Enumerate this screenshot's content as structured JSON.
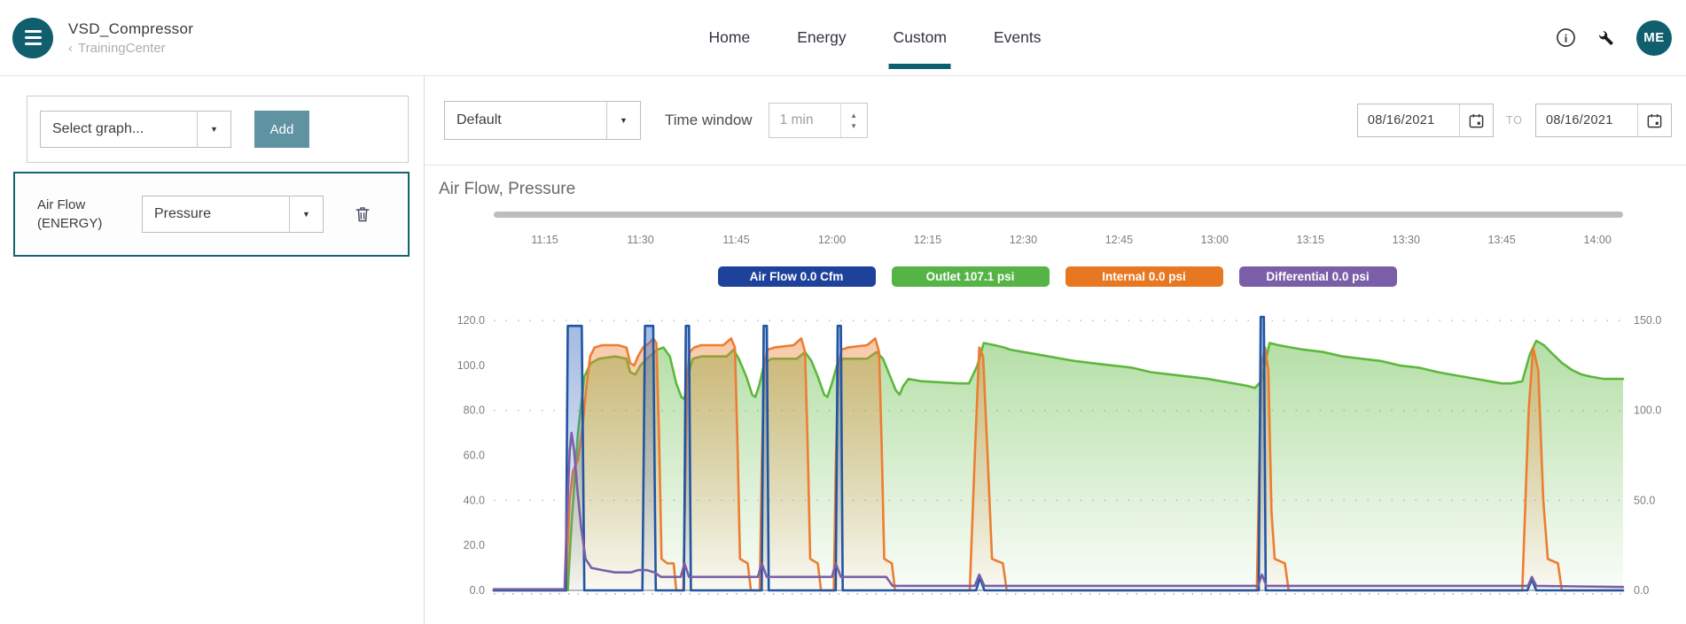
{
  "header": {
    "app_title": "VSD_Compressor",
    "breadcrumb": "TrainingCenter",
    "nav": [
      {
        "label": "Home"
      },
      {
        "label": "Energy"
      },
      {
        "label": "Custom"
      },
      {
        "label": "Events"
      }
    ],
    "active_tab": "Custom",
    "avatar_initials": "ME"
  },
  "icons": {
    "back_chevron": "‹",
    "select_arrow": "▼",
    "stepper_up": "▲",
    "stepper_down": "▼",
    "info_glyph": "i"
  },
  "sidebar": {
    "graph_select_placeholder": "Select graph...",
    "add_button_label": "Add",
    "graph_card": {
      "title_line1": "Air Flow",
      "title_line2": "(ENERGY)",
      "overlay_select_value": "Pressure"
    }
  },
  "toolbar": {
    "preset_select_value": "Default",
    "time_window_label": "Time window",
    "time_window_value": "1 min",
    "date_from": "08/16/2021",
    "range_separator": "TO",
    "date_to": "08/16/2021"
  },
  "chart": {
    "title": "Air Flow, Pressure"
  },
  "colors": {
    "brand_teal": "#115f6e",
    "add_button_teal": "#5f93a2",
    "active_card_border": "#156270",
    "active_tab_underline": "#0c5f6e"
  },
  "chart_data": {
    "type": "line",
    "title": "Air Flow, Pressure",
    "x_axis": {
      "unit": "time of day",
      "range_minutes": [
        7,
        184
      ],
      "ticks": [
        {
          "minute": 15,
          "label": "11:15"
        },
        {
          "minute": 30,
          "label": "11:30"
        },
        {
          "minute": 45,
          "label": "11:45"
        },
        {
          "minute": 60,
          "label": "12:00"
        },
        {
          "minute": 75,
          "label": "12:15"
        },
        {
          "minute": 90,
          "label": "12:30"
        },
        {
          "minute": 105,
          "label": "12:45"
        },
        {
          "minute": 120,
          "label": "13:00"
        },
        {
          "minute": 135,
          "label": "13:15"
        },
        {
          "minute": 150,
          "label": "13:30"
        },
        {
          "minute": 165,
          "label": "13:45"
        },
        {
          "minute": 180,
          "label": "14:00"
        }
      ]
    },
    "y_left": {
      "unit": "psi",
      "max": 122,
      "grid": [
        40,
        80,
        120
      ],
      "ticks": [
        {
          "v": 0,
          "label": "0.0"
        },
        {
          "v": 20,
          "label": "20.0"
        },
        {
          "v": 40,
          "label": "40.0"
        },
        {
          "v": 60,
          "label": "60.0"
        },
        {
          "v": 80,
          "label": "80.0"
        },
        {
          "v": 100,
          "label": "100.0"
        },
        {
          "v": 120,
          "label": "120.0"
        }
      ]
    },
    "y_right": {
      "unit": "Cfm",
      "max": 152.5,
      "ticks": [
        {
          "v": 0,
          "label": "0.0"
        },
        {
          "v": 50,
          "label": "50.0"
        },
        {
          "v": 100,
          "label": "100.0"
        },
        {
          "v": 150,
          "label": "150.0"
        }
      ]
    },
    "legend": [
      {
        "label": "Air Flow 0.0 Cfm",
        "color": "#1e419b"
      },
      {
        "label": "Outlet 107.1 psi",
        "color": "#55b445"
      },
      {
        "label": "Internal 0.0 psi",
        "color": "#e87722"
      },
      {
        "label": "Differential 0.0 psi",
        "color": "#7a5fa8"
      }
    ],
    "series": [
      {
        "name": "Outlet",
        "unit": "psi",
        "axis": "left",
        "current_value": 107.1,
        "color": "#5cb83c",
        "fill_color": "#5cb83c",
        "fill_opacity": 0.5,
        "points": [
          [
            7,
            0
          ],
          [
            18.6,
            0
          ],
          [
            19.2,
            30
          ],
          [
            20.2,
            70
          ],
          [
            21.2,
            95
          ],
          [
            22.2,
            101
          ],
          [
            23.5,
            103
          ],
          [
            26,
            104
          ],
          [
            27.8,
            103
          ],
          [
            28.4,
            97
          ],
          [
            29.2,
            96
          ],
          [
            30,
            100
          ],
          [
            31,
            103
          ],
          [
            32.6,
            107
          ],
          [
            33.6,
            108
          ],
          [
            34.6,
            104
          ],
          [
            35.6,
            92
          ],
          [
            36.4,
            86
          ],
          [
            36.9,
            85
          ],
          [
            37.4,
            95
          ],
          [
            38.2,
            103
          ],
          [
            39.5,
            104
          ],
          [
            43.5,
            104
          ],
          [
            44.6,
            107
          ],
          [
            45.4,
            103
          ],
          [
            46.6,
            95
          ],
          [
            47.5,
            87
          ],
          [
            48,
            86
          ],
          [
            48.6,
            91
          ],
          [
            49.4,
            101
          ],
          [
            50.5,
            103
          ],
          [
            54.5,
            103
          ],
          [
            55.8,
            106
          ],
          [
            56.8,
            102
          ],
          [
            57.8,
            95
          ],
          [
            58.8,
            87
          ],
          [
            59.3,
            86
          ],
          [
            60,
            92
          ],
          [
            60.8,
            100
          ],
          [
            61.8,
            103
          ],
          [
            65.5,
            103
          ],
          [
            67,
            106
          ],
          [
            68,
            103
          ],
          [
            69,
            96
          ],
          [
            70,
            89
          ],
          [
            70.6,
            87
          ],
          [
            71.2,
            91
          ],
          [
            72,
            94
          ],
          [
            74,
            93
          ],
          [
            80,
            92
          ],
          [
            81.5,
            92
          ],
          [
            82.8,
            100
          ],
          [
            83.8,
            110
          ],
          [
            85.5,
            109
          ],
          [
            87,
            108
          ],
          [
            88,
            107
          ],
          [
            90,
            106
          ],
          [
            92,
            105
          ],
          [
            94,
            104
          ],
          [
            96,
            103
          ],
          [
            98,
            102
          ],
          [
            101,
            101
          ],
          [
            104,
            100
          ],
          [
            107,
            99
          ],
          [
            110,
            97
          ],
          [
            113,
            96
          ],
          [
            116,
            95
          ],
          [
            119,
            94
          ],
          [
            121,
            93
          ],
          [
            123,
            92
          ],
          [
            125,
            91
          ],
          [
            126.3,
            90
          ],
          [
            127.3,
            93
          ],
          [
            128.6,
            110
          ],
          [
            130,
            109
          ],
          [
            132,
            108
          ],
          [
            134,
            107
          ],
          [
            137,
            106
          ],
          [
            140,
            104
          ],
          [
            143,
            103
          ],
          [
            146,
            102
          ],
          [
            149,
            100
          ],
          [
            152,
            99
          ],
          [
            155,
            97
          ],
          [
            157,
            96
          ],
          [
            159,
            95
          ],
          [
            161,
            94
          ],
          [
            163,
            93
          ],
          [
            165,
            92
          ],
          [
            166.5,
            92
          ],
          [
            168.2,
            93
          ],
          [
            169.4,
            105
          ],
          [
            170.4,
            111
          ],
          [
            171.6,
            109
          ],
          [
            173,
            105
          ],
          [
            174.5,
            101
          ],
          [
            176,
            98
          ],
          [
            177.5,
            96
          ],
          [
            179,
            95
          ],
          [
            181,
            94
          ],
          [
            184,
            94
          ]
        ]
      },
      {
        "name": "Internal",
        "unit": "psi",
        "axis": "left",
        "current_value": 0.0,
        "color": "#ed7d31",
        "fill_color": "#ed7d31",
        "fill_opacity": 0.45,
        "points": [
          [
            7,
            0
          ],
          [
            18.3,
            0
          ],
          [
            18.9,
            40
          ],
          [
            19.4,
            53
          ],
          [
            20.2,
            58
          ],
          [
            20.9,
            72
          ],
          [
            21.5,
            90
          ],
          [
            22.1,
            104
          ],
          [
            22.8,
            108
          ],
          [
            24,
            109
          ],
          [
            26.5,
            109
          ],
          [
            27.8,
            108
          ],
          [
            28.4,
            101
          ],
          [
            29,
            100
          ],
          [
            29.6,
            104
          ],
          [
            30.4,
            108
          ],
          [
            31.4,
            110
          ],
          [
            32,
            112
          ],
          [
            32.5,
            110
          ],
          [
            32.9,
            70
          ],
          [
            33.3,
            14
          ],
          [
            34.2,
            12
          ],
          [
            35.2,
            12
          ],
          [
            35.6,
            0
          ],
          [
            36.7,
            0
          ],
          [
            37,
            45
          ],
          [
            37.3,
            95
          ],
          [
            37.7,
            106
          ],
          [
            38.4,
            108
          ],
          [
            39.5,
            109
          ],
          [
            43,
            109
          ],
          [
            44.2,
            112
          ],
          [
            44.8,
            108
          ],
          [
            45.2,
            65
          ],
          [
            45.6,
            14
          ],
          [
            46.8,
            12
          ],
          [
            47.3,
            0
          ],
          [
            48.7,
            0
          ],
          [
            49,
            55
          ],
          [
            49.4,
            100
          ],
          [
            49.9,
            107
          ],
          [
            51,
            108
          ],
          [
            54,
            109
          ],
          [
            55.2,
            112
          ],
          [
            55.8,
            106
          ],
          [
            56.2,
            65
          ],
          [
            56.6,
            14
          ],
          [
            57.8,
            12
          ],
          [
            58.3,
            0
          ],
          [
            60.3,
            0
          ],
          [
            60.6,
            55
          ],
          [
            61,
            100
          ],
          [
            61.5,
            107
          ],
          [
            62.5,
            108
          ],
          [
            65.5,
            109
          ],
          [
            66.8,
            112
          ],
          [
            67.4,
            106
          ],
          [
            67.8,
            65
          ],
          [
            68.2,
            14
          ],
          [
            69.4,
            12
          ],
          [
            69.9,
            0
          ],
          [
            81.6,
            0
          ],
          [
            82.4,
            60
          ],
          [
            83.1,
            108
          ],
          [
            83.7,
            104
          ],
          [
            84.4,
            60
          ],
          [
            85.1,
            14
          ],
          [
            86.8,
            12
          ],
          [
            87.4,
            0
          ],
          [
            126.6,
            0
          ],
          [
            127.3,
            100
          ],
          [
            127.9,
            108
          ],
          [
            128.4,
            98
          ],
          [
            128.9,
            35
          ],
          [
            129.4,
            14
          ],
          [
            131,
            12
          ],
          [
            131.6,
            0
          ],
          [
            168.2,
            0
          ],
          [
            169.2,
            80
          ],
          [
            169.9,
            108
          ],
          [
            170.7,
            98
          ],
          [
            171.5,
            40
          ],
          [
            172.2,
            14
          ],
          [
            173.8,
            12
          ],
          [
            174.4,
            0
          ],
          [
            184,
            0
          ]
        ]
      },
      {
        "name": "Air Flow",
        "unit": "Cfm",
        "axis": "right",
        "current_value": 0.0,
        "color": "#2155a3",
        "fill_color": "#4472c4",
        "fill_opacity": 0.5,
        "points": [
          [
            7,
            0
          ],
          [
            18.3,
            0
          ],
          [
            18.6,
            147
          ],
          [
            20.8,
            147
          ],
          [
            21.2,
            0
          ],
          [
            30.3,
            0
          ],
          [
            30.7,
            147
          ],
          [
            32,
            147
          ],
          [
            32.4,
            0
          ],
          [
            36.8,
            0
          ],
          [
            37.1,
            147
          ],
          [
            37.6,
            147
          ],
          [
            37.9,
            0
          ],
          [
            49,
            0
          ],
          [
            49.3,
            147
          ],
          [
            49.8,
            147
          ],
          [
            50.1,
            0
          ],
          [
            60.6,
            0
          ],
          [
            60.9,
            147
          ],
          [
            61.4,
            147
          ],
          [
            61.7,
            0
          ],
          [
            82.6,
            0
          ],
          [
            83.2,
            7
          ],
          [
            83.9,
            0
          ],
          [
            126.9,
            0
          ],
          [
            127.2,
            152
          ],
          [
            127.7,
            152
          ],
          [
            128,
            0
          ],
          [
            169,
            0
          ],
          [
            169.7,
            6
          ],
          [
            170.4,
            0
          ],
          [
            184,
            0
          ]
        ]
      },
      {
        "name": "Differential",
        "unit": "psi",
        "axis": "left",
        "current_value": 0.0,
        "color": "#7a5fa8",
        "fill_color": null,
        "fill_opacity": 0,
        "points": [
          [
            7,
            0.5
          ],
          [
            18.1,
            0.5
          ],
          [
            18.5,
            35
          ],
          [
            18.9,
            62
          ],
          [
            19.2,
            70
          ],
          [
            19.6,
            62
          ],
          [
            20.1,
            45
          ],
          [
            20.7,
            28
          ],
          [
            21.4,
            14
          ],
          [
            22.3,
            10
          ],
          [
            24,
            9
          ],
          [
            26,
            8
          ],
          [
            28.5,
            8
          ],
          [
            29.6,
            9
          ],
          [
            31,
            9
          ],
          [
            32.2,
            8
          ],
          [
            33.2,
            6
          ],
          [
            34.5,
            6
          ],
          [
            36.3,
            6
          ],
          [
            36.9,
            12
          ],
          [
            37.6,
            6
          ],
          [
            41,
            6
          ],
          [
            48.4,
            6
          ],
          [
            49,
            12
          ],
          [
            49.8,
            6
          ],
          [
            53,
            6
          ],
          [
            60,
            6
          ],
          [
            60.6,
            12
          ],
          [
            61.4,
            6
          ],
          [
            66,
            6
          ],
          [
            68.5,
            6
          ],
          [
            69.5,
            2
          ],
          [
            82.4,
            2
          ],
          [
            83.1,
            7
          ],
          [
            83.9,
            2
          ],
          [
            126.8,
            2
          ],
          [
            127.4,
            7
          ],
          [
            128.1,
            2
          ],
          [
            169.1,
            2
          ],
          [
            169.7,
            6
          ],
          [
            170.4,
            2
          ],
          [
            184,
            1.5
          ]
        ]
      }
    ]
  }
}
